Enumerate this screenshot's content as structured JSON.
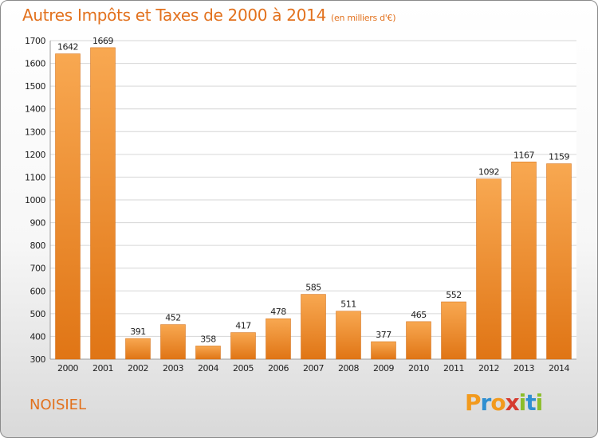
{
  "chart_data": {
    "type": "bar",
    "title": "Autres Impôts et Taxes de 2000 à 2014",
    "subtitle": "(en milliers d'€)",
    "categories": [
      "2000",
      "2001",
      "2002",
      "2003",
      "2004",
      "2005",
      "2006",
      "2007",
      "2008",
      "2009",
      "2010",
      "2011",
      "2012",
      "2013",
      "2014"
    ],
    "values": [
      1642,
      1669,
      391,
      452,
      358,
      417,
      478,
      585,
      511,
      377,
      465,
      552,
      1092,
      1167,
      1159
    ],
    "data_labels": [
      "1642",
      "1669",
      "391",
      "452",
      "358",
      "417",
      "478",
      "585",
      "511",
      "377",
      "465",
      "552",
      "1092",
      "1167",
      "1159"
    ],
    "ylim": [
      300,
      1700
    ],
    "yticks": [
      300,
      400,
      500,
      600,
      700,
      800,
      900,
      1000,
      1100,
      1200,
      1300,
      1400,
      1500,
      1600,
      1700
    ],
    "grid": true,
    "legend": "none",
    "bar_color_top": "#f8a851",
    "bar_color_bottom": "#e07515"
  },
  "location": "NOISIEL",
  "logo": {
    "text": "Proxiti",
    "letters": [
      "P",
      "r",
      "o",
      "x",
      "i",
      "t",
      "i"
    ],
    "colors": [
      "#f29a1d",
      "#2f8fd1",
      "#f29a1d",
      "#d63a2f",
      "#8cbd2a",
      "#2f8fd1",
      "#8cbd2a"
    ]
  },
  "colors": {
    "accent": "#e2711d",
    "grid": "#d6d6d6",
    "axis_text": "#222222"
  }
}
